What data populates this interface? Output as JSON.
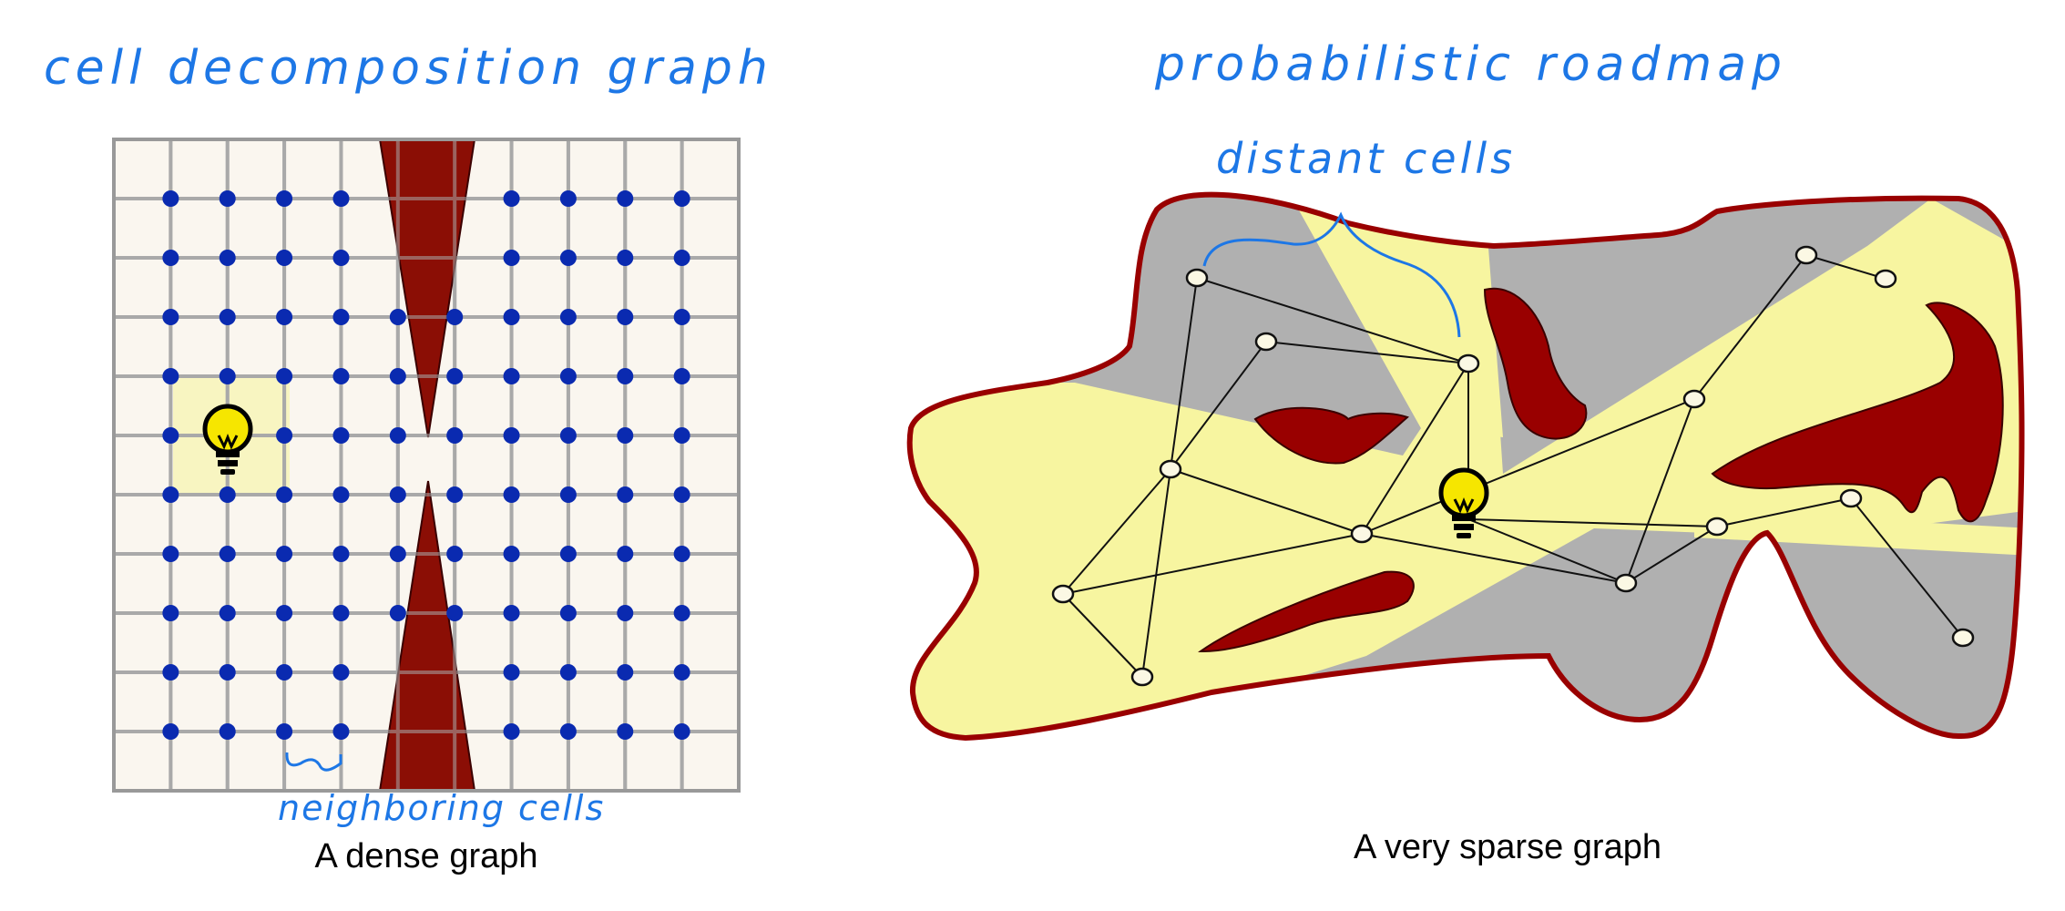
{
  "left_panel": {
    "title": "cell decomposition graph",
    "caption": "A dense graph",
    "neighbor_annotation": "neighboring cells",
    "grid": {
      "columns": 11,
      "rows": 11
    }
  },
  "right_panel": {
    "title": "probabilistic roadmap",
    "caption": "A very sparse graph",
    "distant_annotation": "distant cells",
    "node_count": 14
  },
  "colors": {
    "handwriting": "#1d77e6",
    "obstacle": "#990000",
    "obstacle_dark": "#7a1008",
    "grid_bg": "#faf6ef",
    "grid_line": "#a9a9a9",
    "node_blue": "#0a2ab0",
    "visible_region": "#f7f5a0",
    "shadow_region": "#b0b0b0",
    "light_bulb": "#f6e600"
  },
  "icons": {
    "bulb_left": "light-bulb-icon",
    "bulb_right": "light-bulb-icon"
  }
}
